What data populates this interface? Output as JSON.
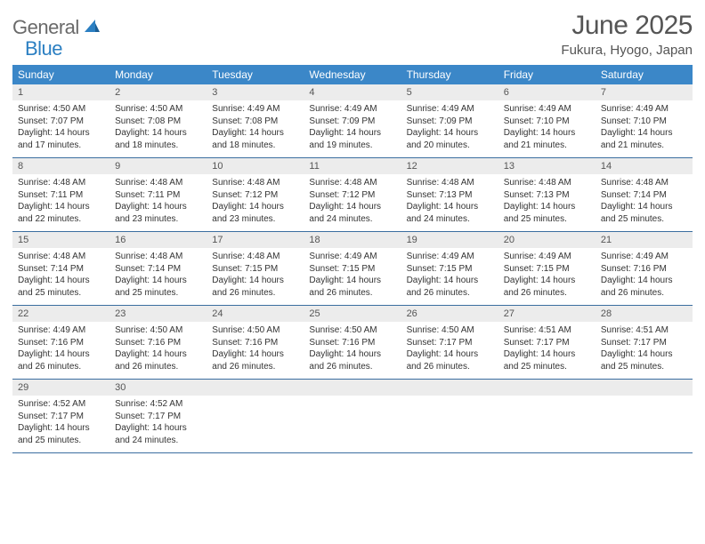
{
  "logo": {
    "text_gray": "General",
    "text_blue": "Blue"
  },
  "header": {
    "month_title": "June 2025",
    "location": "Fukura, Hyogo, Japan"
  },
  "colors": {
    "header_bg": "#3b87c8",
    "week_border": "#3b6ea0",
    "daynum_bg": "#ececec",
    "text_primary": "#333333",
    "text_muted": "#555555",
    "logo_gray": "#6a6a6a",
    "logo_blue": "#2b7fc2"
  },
  "day_names": [
    "Sunday",
    "Monday",
    "Tuesday",
    "Wednesday",
    "Thursday",
    "Friday",
    "Saturday"
  ],
  "weeks": [
    [
      {
        "num": "1",
        "sunrise": "Sunrise: 4:50 AM",
        "sunset": "Sunset: 7:07 PM",
        "day1": "Daylight: 14 hours",
        "day2": "and 17 minutes."
      },
      {
        "num": "2",
        "sunrise": "Sunrise: 4:50 AM",
        "sunset": "Sunset: 7:08 PM",
        "day1": "Daylight: 14 hours",
        "day2": "and 18 minutes."
      },
      {
        "num": "3",
        "sunrise": "Sunrise: 4:49 AM",
        "sunset": "Sunset: 7:08 PM",
        "day1": "Daylight: 14 hours",
        "day2": "and 18 minutes."
      },
      {
        "num": "4",
        "sunrise": "Sunrise: 4:49 AM",
        "sunset": "Sunset: 7:09 PM",
        "day1": "Daylight: 14 hours",
        "day2": "and 19 minutes."
      },
      {
        "num": "5",
        "sunrise": "Sunrise: 4:49 AM",
        "sunset": "Sunset: 7:09 PM",
        "day1": "Daylight: 14 hours",
        "day2": "and 20 minutes."
      },
      {
        "num": "6",
        "sunrise": "Sunrise: 4:49 AM",
        "sunset": "Sunset: 7:10 PM",
        "day1": "Daylight: 14 hours",
        "day2": "and 21 minutes."
      },
      {
        "num": "7",
        "sunrise": "Sunrise: 4:49 AM",
        "sunset": "Sunset: 7:10 PM",
        "day1": "Daylight: 14 hours",
        "day2": "and 21 minutes."
      }
    ],
    [
      {
        "num": "8",
        "sunrise": "Sunrise: 4:48 AM",
        "sunset": "Sunset: 7:11 PM",
        "day1": "Daylight: 14 hours",
        "day2": "and 22 minutes."
      },
      {
        "num": "9",
        "sunrise": "Sunrise: 4:48 AM",
        "sunset": "Sunset: 7:11 PM",
        "day1": "Daylight: 14 hours",
        "day2": "and 23 minutes."
      },
      {
        "num": "10",
        "sunrise": "Sunrise: 4:48 AM",
        "sunset": "Sunset: 7:12 PM",
        "day1": "Daylight: 14 hours",
        "day2": "and 23 minutes."
      },
      {
        "num": "11",
        "sunrise": "Sunrise: 4:48 AM",
        "sunset": "Sunset: 7:12 PM",
        "day1": "Daylight: 14 hours",
        "day2": "and 24 minutes."
      },
      {
        "num": "12",
        "sunrise": "Sunrise: 4:48 AM",
        "sunset": "Sunset: 7:13 PM",
        "day1": "Daylight: 14 hours",
        "day2": "and 24 minutes."
      },
      {
        "num": "13",
        "sunrise": "Sunrise: 4:48 AM",
        "sunset": "Sunset: 7:13 PM",
        "day1": "Daylight: 14 hours",
        "day2": "and 25 minutes."
      },
      {
        "num": "14",
        "sunrise": "Sunrise: 4:48 AM",
        "sunset": "Sunset: 7:14 PM",
        "day1": "Daylight: 14 hours",
        "day2": "and 25 minutes."
      }
    ],
    [
      {
        "num": "15",
        "sunrise": "Sunrise: 4:48 AM",
        "sunset": "Sunset: 7:14 PM",
        "day1": "Daylight: 14 hours",
        "day2": "and 25 minutes."
      },
      {
        "num": "16",
        "sunrise": "Sunrise: 4:48 AM",
        "sunset": "Sunset: 7:14 PM",
        "day1": "Daylight: 14 hours",
        "day2": "and 25 minutes."
      },
      {
        "num": "17",
        "sunrise": "Sunrise: 4:48 AM",
        "sunset": "Sunset: 7:15 PM",
        "day1": "Daylight: 14 hours",
        "day2": "and 26 minutes."
      },
      {
        "num": "18",
        "sunrise": "Sunrise: 4:49 AM",
        "sunset": "Sunset: 7:15 PM",
        "day1": "Daylight: 14 hours",
        "day2": "and 26 minutes."
      },
      {
        "num": "19",
        "sunrise": "Sunrise: 4:49 AM",
        "sunset": "Sunset: 7:15 PM",
        "day1": "Daylight: 14 hours",
        "day2": "and 26 minutes."
      },
      {
        "num": "20",
        "sunrise": "Sunrise: 4:49 AM",
        "sunset": "Sunset: 7:15 PM",
        "day1": "Daylight: 14 hours",
        "day2": "and 26 minutes."
      },
      {
        "num": "21",
        "sunrise": "Sunrise: 4:49 AM",
        "sunset": "Sunset: 7:16 PM",
        "day1": "Daylight: 14 hours",
        "day2": "and 26 minutes."
      }
    ],
    [
      {
        "num": "22",
        "sunrise": "Sunrise: 4:49 AM",
        "sunset": "Sunset: 7:16 PM",
        "day1": "Daylight: 14 hours",
        "day2": "and 26 minutes."
      },
      {
        "num": "23",
        "sunrise": "Sunrise: 4:50 AM",
        "sunset": "Sunset: 7:16 PM",
        "day1": "Daylight: 14 hours",
        "day2": "and 26 minutes."
      },
      {
        "num": "24",
        "sunrise": "Sunrise: 4:50 AM",
        "sunset": "Sunset: 7:16 PM",
        "day1": "Daylight: 14 hours",
        "day2": "and 26 minutes."
      },
      {
        "num": "25",
        "sunrise": "Sunrise: 4:50 AM",
        "sunset": "Sunset: 7:16 PM",
        "day1": "Daylight: 14 hours",
        "day2": "and 26 minutes."
      },
      {
        "num": "26",
        "sunrise": "Sunrise: 4:50 AM",
        "sunset": "Sunset: 7:17 PM",
        "day1": "Daylight: 14 hours",
        "day2": "and 26 minutes."
      },
      {
        "num": "27",
        "sunrise": "Sunrise: 4:51 AM",
        "sunset": "Sunset: 7:17 PM",
        "day1": "Daylight: 14 hours",
        "day2": "and 25 minutes."
      },
      {
        "num": "28",
        "sunrise": "Sunrise: 4:51 AM",
        "sunset": "Sunset: 7:17 PM",
        "day1": "Daylight: 14 hours",
        "day2": "and 25 minutes."
      }
    ],
    [
      {
        "num": "29",
        "sunrise": "Sunrise: 4:52 AM",
        "sunset": "Sunset: 7:17 PM",
        "day1": "Daylight: 14 hours",
        "day2": "and 25 minutes."
      },
      {
        "num": "30",
        "sunrise": "Sunrise: 4:52 AM",
        "sunset": "Sunset: 7:17 PM",
        "day1": "Daylight: 14 hours",
        "day2": "and 24 minutes."
      },
      null,
      null,
      null,
      null,
      null
    ]
  ]
}
